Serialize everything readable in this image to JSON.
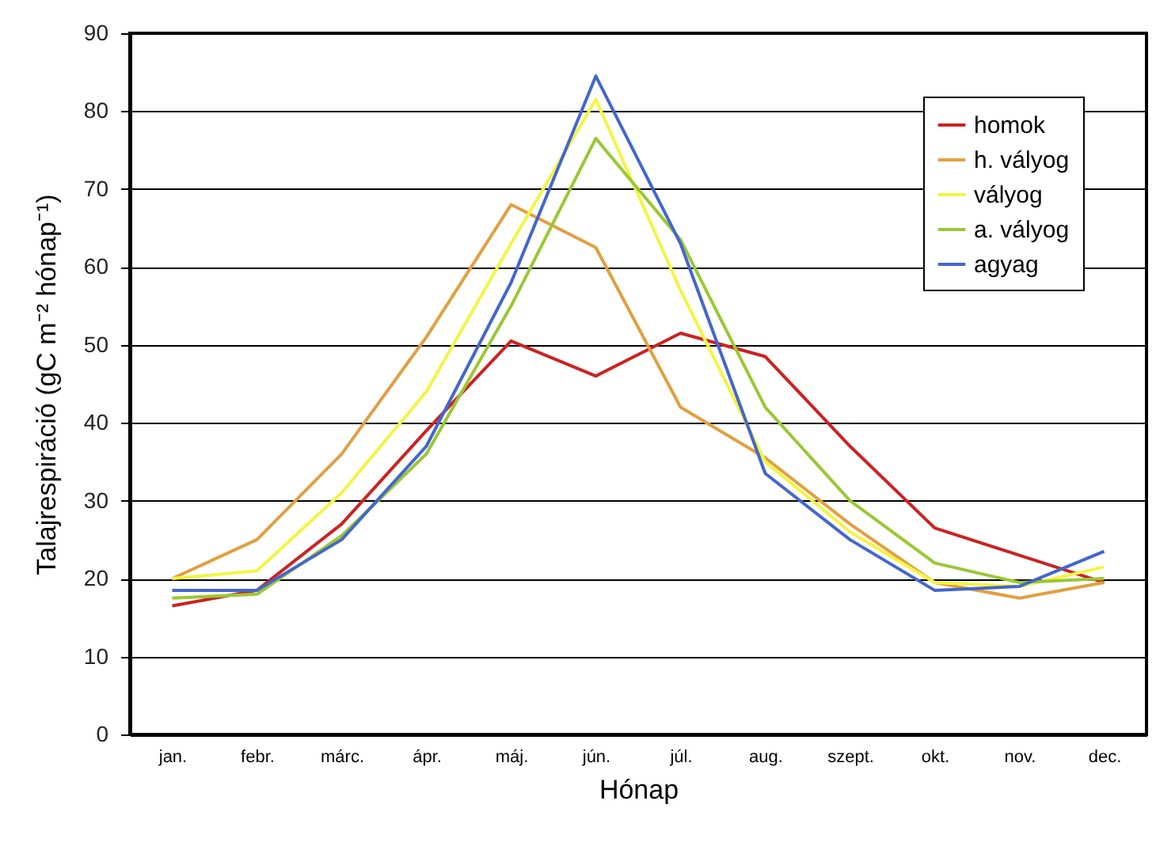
{
  "chart_data": {
    "type": "line",
    "xlabel": "Hónap",
    "ylabel": "Talajrespiráció (gC m⁻² hónap⁻¹)",
    "categories": [
      "jan.",
      "febr.",
      "márc.",
      "ápr.",
      "máj.",
      "jún.",
      "júl.",
      "aug.",
      "szept.",
      "okt.",
      "nov.",
      "dec."
    ],
    "series": [
      {
        "name": "homok",
        "color": "#cc2222",
        "values": [
          16.5,
          18.5,
          27,
          39,
          50.5,
          46,
          51.5,
          48.5,
          37,
          26.5,
          23,
          19.5
        ]
      },
      {
        "name": "h. vályog",
        "color": "#e0a040",
        "values": [
          20,
          25,
          36,
          51,
          68,
          62.5,
          42,
          35.5,
          27,
          19.5,
          17.5,
          19.5
        ]
      },
      {
        "name": "vályog",
        "color": "#f4f444",
        "values": [
          20,
          21,
          31,
          44,
          63,
          81.5,
          57,
          35,
          26,
          19.5,
          19,
          21.5
        ]
      },
      {
        "name": "a. vályog",
        "color": "#99c833",
        "values": [
          17.5,
          18,
          25.5,
          36,
          55,
          76.5,
          63.5,
          42,
          30,
          22,
          19.5,
          20
        ]
      },
      {
        "name": "agyag",
        "color": "#4466cc",
        "values": [
          18.5,
          18.5,
          25,
          37,
          58,
          84.5,
          63,
          33.5,
          25,
          18.5,
          19,
          23.5
        ]
      }
    ],
    "ylim": [
      0,
      90
    ],
    "yticks": [
      0,
      10,
      20,
      30,
      40,
      50,
      60,
      70,
      80,
      90
    ],
    "grid": "y",
    "legend": "top right",
    "marker": "none",
    "line_style": "solid"
  }
}
